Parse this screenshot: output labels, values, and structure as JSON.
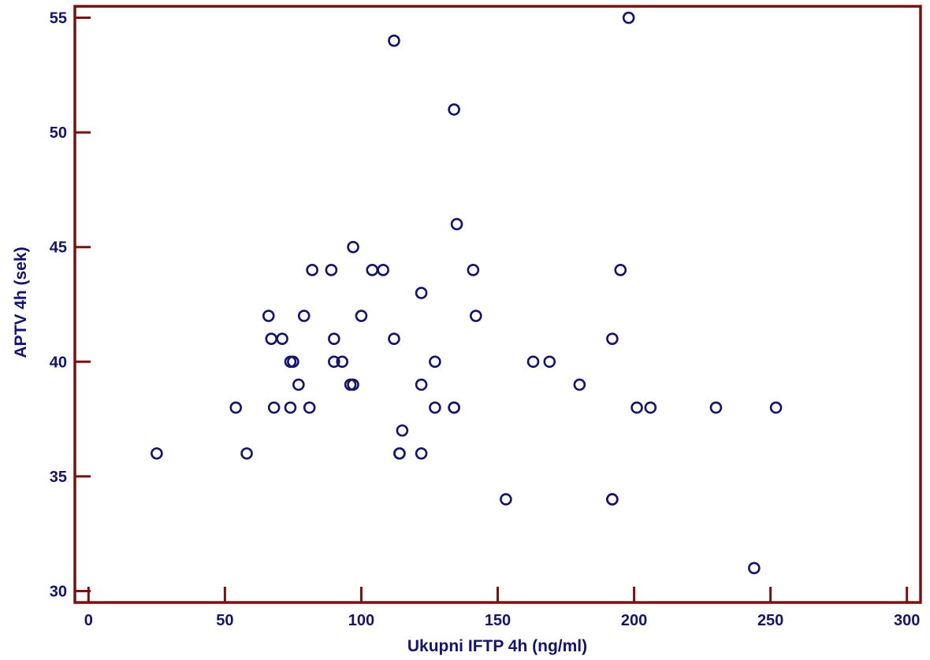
{
  "chart_data": {
    "type": "scatter",
    "title": "",
    "xlabel": "Ukupni IFTP 4h (ng/ml)",
    "ylabel": "APTV 4h (sek)",
    "xlim": [
      -5,
      305
    ],
    "ylim": [
      29.5,
      55.5
    ],
    "xticks": [
      0,
      50,
      100,
      150,
      200,
      250,
      300
    ],
    "yticks": [
      30,
      35,
      40,
      45,
      50,
      55
    ],
    "grid": false,
    "legend": "none",
    "colors": {
      "axis": "#7a1010",
      "marker": "#14146e",
      "text": "#14146e"
    },
    "series": [
      {
        "x": [
          25,
          54,
          58,
          66,
          67,
          68,
          71,
          74,
          74,
          75,
          77,
          79,
          81,
          82,
          89,
          90,
          90,
          93,
          96,
          97,
          97,
          100,
          104,
          108,
          112,
          112,
          114,
          115,
          114,
          122,
          122,
          122,
          127,
          127,
          134,
          134,
          134,
          135,
          141,
          142,
          153,
          163,
          169,
          180,
          192,
          192,
          192,
          195,
          198,
          201,
          206,
          230,
          244,
          252
        ],
        "y": [
          36,
          38,
          36,
          42,
          41,
          38,
          41,
          40,
          38,
          40,
          39,
          42,
          38,
          44,
          44,
          41,
          40,
          40,
          39,
          39,
          45,
          42,
          44,
          44,
          54,
          41,
          36,
          37,
          36,
          36,
          39,
          43,
          40,
          38,
          51,
          38,
          38,
          46,
          44,
          42,
          34,
          40,
          40,
          39,
          34,
          41,
          34,
          44,
          55,
          38,
          38,
          38,
          31,
          38
        ]
      }
    ]
  }
}
